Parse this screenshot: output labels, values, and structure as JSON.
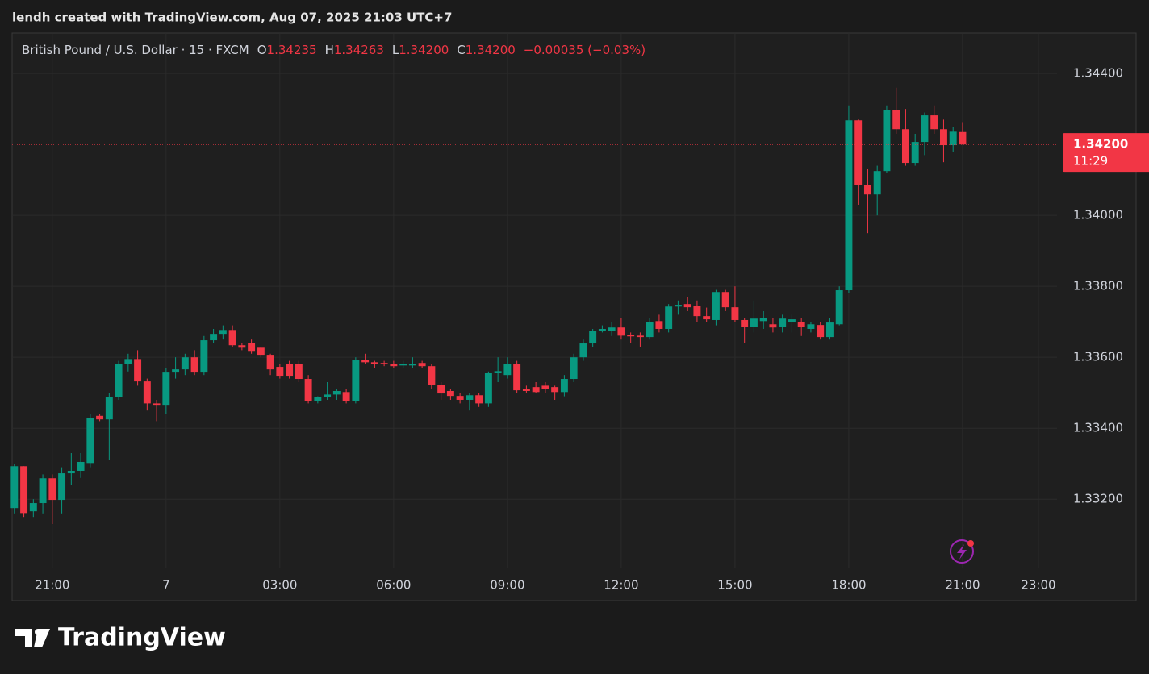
{
  "caption": "lendh created with TradingView.com, Aug 07, 2025 21:03 UTC+7",
  "header": {
    "symbol": "British Pound / U.S. Dollar · 15 · FXCM",
    "ohlc": [
      {
        "key": "O",
        "value": "1.34235"
      },
      {
        "key": "H",
        "value": "1.34263"
      },
      {
        "key": "L",
        "value": "1.34200"
      },
      {
        "key": "C",
        "value": "1.34200"
      }
    ],
    "change": "−0.00035 (−0.03%)"
  },
  "price_tag": {
    "price": "1.34200",
    "countdown": "11:29"
  },
  "logo": "TradingView",
  "chart_data": {
    "type": "candlestick",
    "x": [
      20,
      20.25,
      20.5,
      20.75,
      21,
      21.25,
      21.5,
      21.75,
      22,
      22.25,
      22.5,
      22.75,
      23,
      23.25,
      23.5,
      23.75,
      24,
      24.25,
      24.5,
      24.75,
      25,
      25.25,
      25.5,
      25.75,
      26,
      26.25,
      26.5,
      26.75,
      27,
      27.25,
      27.5,
      27.75,
      28,
      28.25,
      28.5,
      28.75,
      29,
      29.25,
      29.5,
      29.75,
      30,
      30.25,
      30.5,
      30.75,
      31,
      31.25,
      31.5,
      31.75,
      32,
      32.25,
      32.5,
      32.75,
      33,
      33.25,
      33.5,
      33.75,
      34,
      34.25,
      34.5,
      34.75,
      35,
      35.25,
      35.5,
      35.75,
      36,
      36.25,
      36.5,
      36.75,
      37,
      37.25,
      37.5,
      37.75,
      38,
      38.25,
      38.5,
      38.75,
      39,
      39.25,
      39.5,
      39.75,
      40,
      40.25,
      40.5,
      40.75,
      41,
      41.25,
      41.5,
      41.75,
      42,
      42.25,
      42.5,
      42.75,
      43,
      43.25,
      43.5,
      43.75,
      44,
      44.25,
      44.5,
      44.75,
      45
    ],
    "open": [
      1.33175,
      1.33293,
      1.33166,
      1.33189,
      1.33259,
      1.33198,
      1.33273,
      1.3328,
      1.33302,
      1.33435,
      1.33425,
      1.33489,
      1.33582,
      1.33595,
      1.33532,
      1.3347,
      1.33466,
      1.33557,
      1.33566,
      1.336,
      1.33557,
      1.33648,
      1.33666,
      1.33677,
      1.33634,
      1.33641,
      1.33627,
      1.33607,
      1.33573,
      1.3358,
      1.3358,
      1.33539,
      1.33477,
      1.33489,
      1.33495,
      1.33502,
      1.33477,
      1.33593,
      1.33586,
      1.33584,
      1.33582,
      1.33577,
      1.33577,
      1.33584,
      1.33575,
      1.33523,
      1.33505,
      1.33491,
      1.3348,
      1.33493,
      1.3347,
      1.33555,
      1.3355,
      1.3358,
      1.33511,
      1.33516,
      1.3352,
      1.33516,
      1.33502,
      1.33539,
      1.336,
      1.33639,
      1.33675,
      1.33675,
      1.33684,
      1.33664,
      1.33661,
      1.33657,
      1.33702,
      1.3368,
      1.33743,
      1.3375,
      1.33745,
      1.33716,
      1.33705,
      1.33784,
      1.33741,
      1.33705,
      1.33686,
      1.33702,
      1.33693,
      1.33686,
      1.337,
      1.337,
      1.3368,
      1.33691,
      1.33657,
      1.33693,
      1.33789,
      1.34268,
      1.34086,
      1.34059,
      1.34125,
      1.34298,
      1.34243,
      1.34148,
      1.34207,
      1.34282,
      1.34243,
      1.34198,
      1.34235
    ],
    "high": [
      1.333,
      1.33293,
      1.332,
      1.3327,
      1.3327,
      1.3329,
      1.3333,
      1.3333,
      1.3344,
      1.3344,
      1.335,
      1.3359,
      1.3361,
      1.3362,
      1.3354,
      1.3348,
      1.3357,
      1.336,
      1.3361,
      1.3362,
      1.3366,
      1.3368,
      1.3369,
      1.3369,
      1.3364,
      1.3365,
      1.3363,
      1.3361,
      1.3358,
      1.3359,
      1.3359,
      1.3355,
      1.3349,
      1.3353,
      1.3351,
      1.3351,
      1.336,
      1.3361,
      1.3359,
      1.3359,
      1.3359,
      1.3359,
      1.336,
      1.3359,
      1.3358,
      1.3353,
      1.3351,
      1.335,
      1.335,
      1.335,
      1.3356,
      1.336,
      1.336,
      1.3359,
      1.3352,
      1.3353,
      1.3353,
      1.3352,
      1.3355,
      1.3361,
      1.3365,
      1.3368,
      1.3369,
      1.337,
      1.3371,
      1.3367,
      1.3367,
      1.3371,
      1.3372,
      1.3375,
      1.3376,
      1.3377,
      1.3376,
      1.3374,
      1.3379,
      1.3379,
      1.338,
      1.3371,
      1.3376,
      1.3373,
      1.3371,
      1.3372,
      1.3372,
      1.3371,
      1.337,
      1.337,
      1.3371,
      1.338,
      1.3431,
      1.3427,
      1.3413,
      1.3414,
      1.3431,
      1.3436,
      1.343,
      1.3423,
      1.3429,
      1.3431,
      1.3427,
      1.3425,
      1.34263
    ],
    "low": [
      1.3316,
      1.3315,
      1.3315,
      1.3316,
      1.3313,
      1.3316,
      1.3324,
      1.3326,
      1.3329,
      1.3342,
      1.3331,
      1.3348,
      1.3356,
      1.3352,
      1.3345,
      1.3342,
      1.3344,
      1.3354,
      1.3355,
      1.3355,
      1.3355,
      1.3364,
      1.3365,
      1.3363,
      1.3362,
      1.3361,
      1.336,
      1.3355,
      1.3354,
      1.3354,
      1.3353,
      1.3347,
      1.3347,
      1.3348,
      1.3348,
      1.3347,
      1.3347,
      1.3358,
      1.3357,
      1.33575,
      1.3357,
      1.3357,
      1.3357,
      1.3357,
      1.3351,
      1.3348,
      1.3348,
      1.3347,
      1.3345,
      1.3346,
      1.3346,
      1.3353,
      1.3354,
      1.335,
      1.335,
      1.335,
      1.335,
      1.3348,
      1.3349,
      1.3353,
      1.3359,
      1.3363,
      1.3367,
      1.3366,
      1.3365,
      1.3364,
      1.3363,
      1.3365,
      1.3367,
      1.3367,
      1.3372,
      1.3373,
      1.337,
      1.337,
      1.3369,
      1.3373,
      1.337,
      1.3364,
      1.3367,
      1.3368,
      1.3367,
      1.3367,
      1.3367,
      1.3366,
      1.3367,
      1.3365,
      1.3365,
      1.3369,
      1.3378,
      1.3403,
      1.3395,
      1.34,
      1.3412,
      1.3423,
      1.3414,
      1.3414,
      1.3417,
      1.3423,
      1.3415,
      1.3418,
      1.342
    ],
    "close": [
      1.33293,
      1.33161,
      1.33189,
      1.33259,
      1.33198,
      1.33273,
      1.3328,
      1.33305,
      1.3343,
      1.33425,
      1.33489,
      1.33582,
      1.33595,
      1.33532,
      1.3347,
      1.33466,
      1.33557,
      1.33566,
      1.336,
      1.33557,
      1.33648,
      1.33666,
      1.33677,
      1.33634,
      1.33627,
      1.33618,
      1.33607,
      1.33566,
      1.33548,
      1.33548,
      1.33539,
      1.33477,
      1.33489,
      1.33495,
      1.33505,
      1.33477,
      1.33593,
      1.33586,
      1.33582,
      1.33582,
      1.33575,
      1.33582,
      1.33582,
      1.33575,
      1.33523,
      1.33498,
      1.33491,
      1.3348,
      1.33493,
      1.3347,
      1.33555,
      1.33561,
      1.3358,
      1.33507,
      1.33505,
      1.33502,
      1.33511,
      1.33502,
      1.33539,
      1.336,
      1.33639,
      1.33675,
      1.3368,
      1.33684,
      1.33661,
      1.33659,
      1.33657,
      1.337,
      1.3368,
      1.33743,
      1.33748,
      1.33741,
      1.33716,
      1.33707,
      1.33784,
      1.33741,
      1.33705,
      1.33686,
      1.33709,
      1.33711,
      1.33684,
      1.33709,
      1.33707,
      1.33686,
      1.33693,
      1.33657,
      1.33698,
      1.33789,
      1.34268,
      1.34086,
      1.34059,
      1.34125,
      1.34298,
      1.34243,
      1.34148,
      1.34207,
      1.34282,
      1.34243,
      1.34198,
      1.34236,
      1.342
    ],
    "up_color": "#089981",
    "down_color": "#f23645",
    "xlim": [
      19.94,
      47.49
    ],
    "ylim": [
      1.33005,
      1.34514
    ],
    "xticks": [
      {
        "value": 21,
        "label": "21:00"
      },
      {
        "value": 24,
        "label": "7"
      },
      {
        "value": 27,
        "label": "03:00"
      },
      {
        "value": 30,
        "label": "06:00"
      },
      {
        "value": 33,
        "label": "09:00"
      },
      {
        "value": 36,
        "label": "12:00"
      },
      {
        "value": 39,
        "label": "15:00"
      },
      {
        "value": 42,
        "label": "18:00"
      },
      {
        "value": 45,
        "label": "21:00"
      },
      {
        "value": 47,
        "label": "23:00"
      }
    ],
    "yticks": [
      {
        "value": 1.332,
        "label": "1.33200"
      },
      {
        "value": 1.334,
        "label": "1.33400"
      },
      {
        "value": 1.336,
        "label": "1.33600"
      },
      {
        "value": 1.338,
        "label": "1.33800"
      },
      {
        "value": 1.34,
        "label": "1.34000"
      },
      {
        "value": 1.344,
        "label": "1.34400"
      }
    ],
    "grid": true
  }
}
